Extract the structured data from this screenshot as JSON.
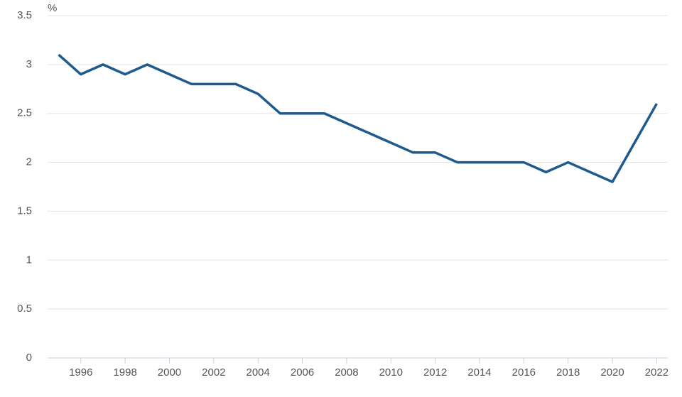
{
  "chart_data": {
    "type": "line",
    "y_unit": "%",
    "x": [
      1995,
      1996,
      1997,
      1998,
      1999,
      2000,
      2001,
      2002,
      2003,
      2004,
      2005,
      2006,
      2007,
      2008,
      2009,
      2010,
      2011,
      2012,
      2013,
      2014,
      2015,
      2016,
      2017,
      2018,
      2019,
      2020,
      2021,
      2022
    ],
    "series": [
      {
        "color": "#1f5a8e",
        "values": [
          3.1,
          2.9,
          3.0,
          2.9,
          3.0,
          2.9,
          2.8,
          2.8,
          2.8,
          2.7,
          2.5,
          2.5,
          2.5,
          2.4,
          2.3,
          2.2,
          2.1,
          2.1,
          2.0,
          2.0,
          2.0,
          2.0,
          1.9,
          2.0,
          1.9,
          1.8,
          2.2,
          2.6
        ]
      }
    ],
    "xlim": [
      1994.5,
      2022.5
    ],
    "xticks": [
      1996,
      1998,
      2000,
      2002,
      2004,
      2006,
      2008,
      2010,
      2012,
      2014,
      2016,
      2018,
      2020,
      2022
    ],
    "ylim": [
      0,
      3.5
    ],
    "yticks": [
      0,
      0.5,
      1,
      1.5,
      2,
      2.5,
      3,
      3.5
    ],
    "grid": true
  }
}
